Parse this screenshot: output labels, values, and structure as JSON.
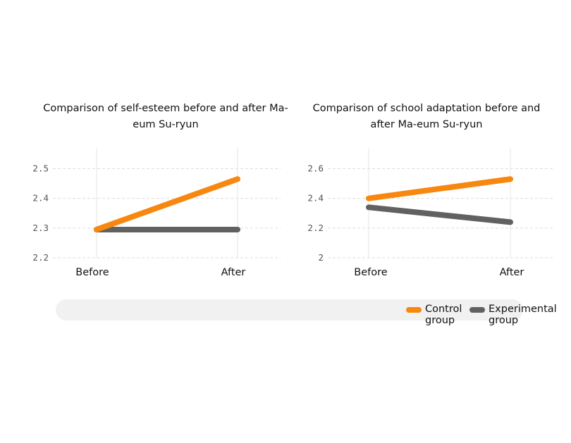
{
  "colors": {
    "control": "#f7870f",
    "experimental": "#616161",
    "grid": "#dddddd"
  },
  "legend": [
    {
      "label": "Control\ngroup",
      "color": "#f7870f",
      "icon": "line-swatch"
    },
    {
      "label": "Experimental\ngroup",
      "color": "#616161",
      "icon": "line-swatch"
    }
  ],
  "chart_data": [
    {
      "type": "line",
      "title": "Comparison of self-esteem before and after\nMa-eum Su-ryun",
      "categories": [
        "Before",
        "After"
      ],
      "ylim": [
        2.2,
        2.57
      ],
      "yticks": [
        2.2,
        2.3,
        2.4,
        2.5
      ],
      "ytick_labels": [
        "2.2",
        "2.3",
        "2.4",
        "2.5"
      ],
      "grid": true,
      "series": [
        {
          "name": "Control group",
          "values": [
            2.295,
            2.465
          ]
        },
        {
          "name": "Experimental group",
          "values": [
            2.295,
            2.295
          ]
        }
      ]
    },
    {
      "type": "line",
      "title": "Comparison of school adaptation before and after\nMa-eum Su-ryun",
      "categories": [
        "Before",
        "After"
      ],
      "ylim": [
        2.0,
        2.74
      ],
      "yticks": [
        2.0,
        2.2,
        2.4,
        2.6
      ],
      "ytick_labels": [
        "2",
        "2.2",
        "2.4",
        "2.6"
      ],
      "grid": true,
      "series": [
        {
          "name": "Control group",
          "values": [
            2.4,
            2.53
          ]
        },
        {
          "name": "Experimental group",
          "values": [
            2.34,
            2.24
          ]
        }
      ]
    }
  ]
}
